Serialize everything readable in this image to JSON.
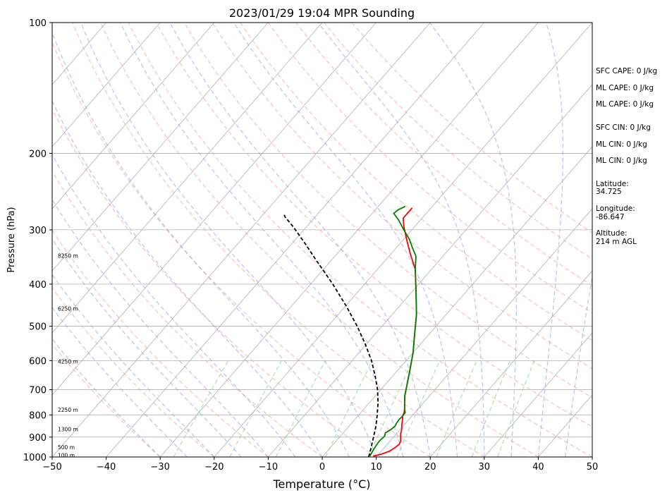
{
  "chart_data": {
    "type": "line",
    "title": "2023/01/29 19:04 MPR Sounding",
    "xlabel": "Temperature (°C)",
    "ylabel": "Pressure (hPa)",
    "xlim": [
      -50,
      50
    ],
    "ylim": [
      1000,
      100
    ],
    "y_scale": "log",
    "grid": true,
    "x_ticks": [
      -50,
      -40,
      -30,
      -20,
      -10,
      0,
      10,
      20,
      30,
      40,
      50
    ],
    "x_tick_labels": [
      "−50",
      "−40",
      "−30",
      "−20",
      "−10",
      "0",
      "10",
      "20",
      "30",
      "40",
      "50"
    ],
    "y_ticks": [
      1000,
      900,
      800,
      700,
      600,
      500,
      400,
      300,
      200,
      100
    ],
    "y_tick_labels": [
      "1000",
      "900",
      "800",
      "700",
      "600",
      "500",
      "400",
      "300",
      "200",
      "100"
    ],
    "height_labels": [
      {
        "text": "100 m",
        "p": 994
      },
      {
        "text": "500 m",
        "p": 953
      },
      {
        "text": "1300 m",
        "p": 866
      },
      {
        "text": "2250 m",
        "p": 781
      },
      {
        "text": "4250 m",
        "p": 605
      },
      {
        "text": "6250 m",
        "p": 457
      },
      {
        "text": "8250 m",
        "p": 345
      }
    ],
    "series": [
      {
        "kind": "temperature",
        "color": "#ff0000",
        "points": [
          [
            9.3,
            995
          ],
          [
            10.5,
            985
          ],
          [
            11.5,
            970
          ],
          [
            12.0,
            950
          ],
          [
            12.2,
            935
          ],
          [
            12.0,
            920
          ],
          [
            11.5,
            905
          ],
          [
            10.8,
            885
          ],
          [
            10.3,
            865
          ],
          [
            9.6,
            845
          ],
          [
            9.0,
            825
          ],
          [
            8.3,
            805
          ],
          [
            8.0,
            790
          ],
          [
            7.5,
            775
          ],
          [
            5.5,
            725
          ],
          [
            4.0,
            680
          ],
          [
            2.0,
            625
          ],
          [
            0.0,
            575
          ],
          [
            -2.5,
            525
          ],
          [
            -5.5,
            470
          ],
          [
            -9.0,
            420
          ],
          [
            -13.0,
            370
          ],
          [
            -16.5,
            340
          ],
          [
            -19.5,
            315
          ],
          [
            -22.0,
            295
          ],
          [
            -23.5,
            282
          ],
          [
            -23.5,
            267
          ]
        ]
      },
      {
        "kind": "dewpoint",
        "color": "#008000",
        "points": [
          [
            8.7,
            995
          ],
          [
            8.5,
            980
          ],
          [
            8.2,
            950
          ],
          [
            8.0,
            920
          ],
          [
            8.2,
            895
          ],
          [
            7.8,
            880
          ],
          [
            8.3,
            865
          ],
          [
            8.5,
            850
          ],
          [
            8.3,
            835
          ],
          [
            8.2,
            820
          ],
          [
            8.3,
            805
          ],
          [
            8.2,
            790
          ],
          [
            7.5,
            775
          ],
          [
            5.5,
            725
          ],
          [
            4.0,
            680
          ],
          [
            2.0,
            625
          ],
          [
            0.0,
            575
          ],
          [
            -2.5,
            525
          ],
          [
            -5.5,
            470
          ],
          [
            -9.0,
            420
          ],
          [
            -13.0,
            370
          ],
          [
            -15.0,
            345
          ],
          [
            -17.0,
            330
          ],
          [
            -19.0,
            315
          ],
          [
            -21.5,
            300
          ],
          [
            -24.0,
            285
          ],
          [
            -26.0,
            275
          ],
          [
            -25.8,
            270
          ],
          [
            -25.0,
            265
          ]
        ]
      },
      {
        "kind": "parcel",
        "color": "#000000",
        "style": "dashed",
        "points": [
          [
            8.6,
            1000
          ],
          [
            7.5,
            950
          ],
          [
            6.3,
            900
          ],
          [
            5.0,
            850
          ],
          [
            3.4,
            800
          ],
          [
            1.6,
            750
          ],
          [
            -0.6,
            700
          ],
          [
            -3.3,
            650
          ],
          [
            -6.4,
            600
          ],
          [
            -10.2,
            550
          ],
          [
            -14.6,
            500
          ],
          [
            -19.8,
            450
          ],
          [
            -25.9,
            400
          ],
          [
            -33.2,
            350
          ],
          [
            -38.0,
            320
          ],
          [
            -42.5,
            295
          ],
          [
            -45.6,
            280
          ],
          [
            -46.5,
            274
          ]
        ]
      }
    ]
  },
  "side_info": {
    "sfc_cape": "SFC CAPE: 0 J/kg",
    "ml_cape": "ML CAPE: 0 J/kg",
    "ml_cape_2": "ML CAPE: 0 J/kg",
    "sfc_cin": "SFC CIN: 0 J/kg",
    "ml_cin": "ML CIN: 0 J/kg",
    "ml_cin_2": "ML CIN: 0 J/kg",
    "latitude_label": "Latitude:",
    "latitude_value": "34.725",
    "longitude_label": "Longitude:",
    "longitude_value": "-86.647",
    "altitude_label": "Altitude:",
    "altitude_value": "214 m AGL"
  },
  "colors": {
    "temperature": "#ff0000",
    "dewpoint": "#008000",
    "parcel": "#000000",
    "dry_adiabat": "#ff9999",
    "moist_adiabat": "#9999ff",
    "mixing_ratio": "#88cc88",
    "isotherm": "#b0b0b0"
  }
}
